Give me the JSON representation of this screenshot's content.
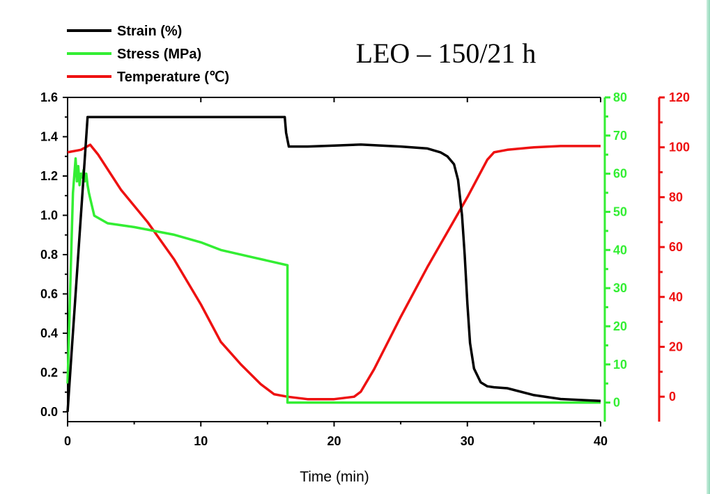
{
  "chart_data": {
    "type": "line",
    "title": "LEO – 150/21 h",
    "xlabel": "Time (min)",
    "xlim": [
      0,
      40
    ],
    "x_ticks": [
      0,
      10,
      20,
      30,
      40
    ],
    "legend_position": "top-left",
    "grid": false,
    "axes": {
      "left": {
        "series": "Strain (%)",
        "ylim": [
          -0.05,
          1.6
        ],
        "ticks": [
          "0.0",
          "0.2",
          "0.4",
          "0.6",
          "0.8",
          "1.0",
          "1.2",
          "1.4",
          "1.6"
        ],
        "color": "#000000"
      },
      "right1": {
        "series": "Stress (MPa)",
        "ylim": [
          -5,
          80
        ],
        "ticks": [
          "0",
          "10",
          "20",
          "30",
          "40",
          "50",
          "60",
          "70",
          "80"
        ],
        "color": "#33ee33"
      },
      "right2": {
        "series": "Temperature (℃)",
        "ylim": [
          -10,
          120
        ],
        "ticks": [
          "0",
          "20",
          "40",
          "60",
          "80",
          "100",
          "120"
        ],
        "color": "#ee1111"
      }
    },
    "series": [
      {
        "name": "Strain (%)",
        "color": "#000000",
        "axis": "left",
        "x": [
          0,
          0.3,
          0.6,
          0.9,
          1.2,
          1.5,
          2,
          5,
          10,
          16.3,
          16.4,
          16.6,
          18,
          20,
          22,
          25,
          27,
          28,
          28.5,
          29,
          29.3,
          29.6,
          29.8,
          30,
          30.2,
          30.5,
          31,
          31.5,
          32,
          33,
          35,
          37,
          40
        ],
        "y": [
          0.0,
          0.3,
          0.6,
          0.9,
          1.2,
          1.5,
          1.5,
          1.5,
          1.5,
          1.5,
          1.42,
          1.35,
          1.35,
          1.355,
          1.36,
          1.35,
          1.34,
          1.32,
          1.3,
          1.26,
          1.18,
          1.0,
          0.8,
          0.55,
          0.35,
          0.22,
          0.15,
          0.13,
          0.125,
          0.12,
          0.085,
          0.065,
          0.055
        ]
      },
      {
        "name": "Stress (MPa)",
        "color": "#33ee33",
        "axis": "right1",
        "x": [
          0,
          0.2,
          0.4,
          0.6,
          0.7,
          0.8,
          0.9,
          1.0,
          1.1,
          1.2,
          1.3,
          1.4,
          1.5,
          1.6,
          1.8,
          2.0,
          2.5,
          3,
          5,
          8,
          10,
          11.5,
          14,
          16.5,
          16.5,
          16.7,
          20,
          30,
          40
        ],
        "y": [
          5,
          30,
          55,
          64,
          58,
          62,
          57,
          60,
          59,
          61,
          58,
          60,
          57,
          55,
          52,
          49,
          48,
          47,
          46,
          44,
          42,
          40,
          38,
          36,
          0,
          0,
          0,
          0,
          0
        ]
      },
      {
        "name": "Temperature (℃)",
        "color": "#ee1111",
        "axis": "right2",
        "x": [
          0,
          1,
          1.7,
          2.3,
          4,
          6,
          8,
          10,
          11.5,
          13,
          14.5,
          15.5,
          16.5,
          18,
          20,
          21.5,
          22,
          23,
          25,
          27,
          28.5,
          30,
          31.5,
          32,
          33,
          35,
          37,
          40
        ],
        "y": [
          98,
          99,
          101,
          97,
          83,
          70,
          55,
          37,
          22,
          13,
          5,
          1,
          0,
          -1,
          -1,
          0,
          2,
          11,
          32,
          52,
          66,
          80,
          95,
          98,
          99,
          100,
          100.5,
          100.5
        ]
      }
    ]
  }
}
